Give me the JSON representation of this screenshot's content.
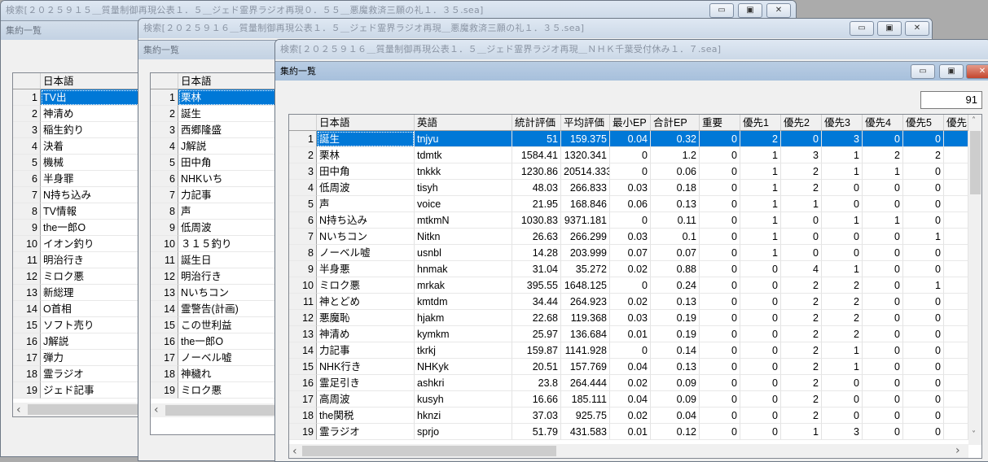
{
  "windows": [
    {
      "title": "検索[２０２５９１５＿質量制御再現公表１．５＿ジェド霊界ラジオ再現０．５５＿悪魔救済三願の礼１．３５.sea]",
      "inner_title": "集約一覧",
      "grid": {
        "header": [
          "日本語"
        ],
        "rows": [
          "TV出",
          "神清め",
          "稲生釣り",
          "決着",
          "機械",
          "半身罪",
          "N持ち込み",
          "TV情報",
          "the一郎O",
          "イオン釣り",
          "明治行き",
          "ミロク悪",
          "新総理",
          "O首相",
          "ソフト売り",
          "J解説",
          "弾力",
          "霊ラジオ",
          "ジェド記事"
        ]
      }
    },
    {
      "title": "検索[２０２５９１６＿質量制御再現公表１．５＿ジェド霊界ラジオ再現＿悪魔救済三願の礼１．３５.sea]",
      "inner_title": "集約一覧",
      "grid": {
        "header": [
          "日本語"
        ],
        "rows": [
          "栗林",
          "誕生",
          "西郷隆盛",
          "J解説",
          "田中角",
          "NHKいち",
          "力記事",
          "声",
          "低周波",
          "３１５釣り",
          "誕生日",
          "明治行き",
          "Nいちコン",
          "霊警告(計画)",
          "この世利益",
          "the一郎O",
          "ノーベル嘘",
          "神穢れ",
          "ミロク悪"
        ]
      }
    },
    {
      "title": "検索[２０２５９１６＿質量制御再現公表１．５＿ジェド霊界ラジオ再現＿ＮＨＫ千葉受付休み１．７.sea]",
      "inner_title": "集約一覧",
      "count": "91",
      "grid": {
        "header": [
          "日本語",
          "英語",
          "統計評価",
          "平均評価",
          "最小EP",
          "合計EP",
          "重要",
          "優先1",
          "優先2",
          "優先3",
          "優先4",
          "優先5",
          "優先"
        ],
        "rows": [
          [
            "誕生",
            "tnjyu",
            "51",
            "159.375",
            "0.04",
            "0.32",
            "0",
            "2",
            "0",
            "3",
            "0",
            "0"
          ],
          [
            "栗林",
            "tdmtk",
            "1584.41",
            "1320.341",
            "0",
            "1.2",
            "0",
            "1",
            "3",
            "1",
            "2",
            "2"
          ],
          [
            "田中角",
            "tnkkk",
            "1230.86",
            "20514.333",
            "0",
            "0.06",
            "0",
            "1",
            "2",
            "1",
            "1",
            "0"
          ],
          [
            "低周波",
            "tisyh",
            "48.03",
            "266.833",
            "0.03",
            "0.18",
            "0",
            "1",
            "2",
            "0",
            "0",
            "0"
          ],
          [
            "声",
            "voice",
            "21.95",
            "168.846",
            "0.06",
            "0.13",
            "0",
            "1",
            "1",
            "0",
            "0",
            "0"
          ],
          [
            "N持ち込み",
            "mtkmN",
            "1030.83",
            "9371.181",
            "0",
            "0.11",
            "0",
            "1",
            "0",
            "1",
            "1",
            "0"
          ],
          [
            "Nいちコン",
            "Nitkn",
            "26.63",
            "266.299",
            "0.03",
            "0.1",
            "0",
            "1",
            "0",
            "0",
            "0",
            "1"
          ],
          [
            "ノーベル嘘",
            "usnbl",
            "14.28",
            "203.999",
            "0.07",
            "0.07",
            "0",
            "1",
            "0",
            "0",
            "0",
            "0"
          ],
          [
            "半身悪",
            "hnmak",
            "31.04",
            "35.272",
            "0.02",
            "0.88",
            "0",
            "0",
            "4",
            "1",
            "0",
            "0"
          ],
          [
            "ミロク悪",
            "mrkak",
            "395.55",
            "1648.125",
            "0",
            "0.24",
            "0",
            "0",
            "2",
            "2",
            "0",
            "1"
          ],
          [
            "神とどめ",
            "kmtdm",
            "34.44",
            "264.923",
            "0.02",
            "0.13",
            "0",
            "0",
            "2",
            "2",
            "0",
            "0"
          ],
          [
            "悪魔恥",
            "hjakm",
            "22.68",
            "119.368",
            "0.03",
            "0.19",
            "0",
            "0",
            "2",
            "2",
            "0",
            "0"
          ],
          [
            "神清め",
            "kymkm",
            "25.97",
            "136.684",
            "0.01",
            "0.19",
            "0",
            "0",
            "2",
            "2",
            "0",
            "0"
          ],
          [
            "力記事",
            "tkrkj",
            "159.87",
            "1141.928",
            "0",
            "0.14",
            "0",
            "0",
            "2",
            "1",
            "0",
            "0"
          ],
          [
            "NHK行き",
            "NHKyk",
            "20.51",
            "157.769",
            "0.04",
            "0.13",
            "0",
            "0",
            "2",
            "1",
            "0",
            "0"
          ],
          [
            "霊足引き",
            "ashkri",
            "23.8",
            "264.444",
            "0.02",
            "0.09",
            "0",
            "0",
            "2",
            "0",
            "0",
            "0"
          ],
          [
            "高周波",
            "kusyh",
            "16.66",
            "185.111",
            "0.04",
            "0.09",
            "0",
            "0",
            "2",
            "0",
            "0",
            "0"
          ],
          [
            "the関税",
            "hknzi",
            "37.03",
            "925.75",
            "0.02",
            "0.04",
            "0",
            "0",
            "2",
            "0",
            "0",
            "0"
          ],
          [
            "霊ラジオ",
            "sprjo",
            "51.79",
            "431.583",
            "0.01",
            "0.12",
            "0",
            "0",
            "1",
            "3",
            "0",
            "0"
          ]
        ]
      }
    }
  ],
  "controls": {
    "minimize": "▭",
    "maximize": "▣",
    "close": "✕"
  },
  "colors": {
    "selection": "#0078d7",
    "close_button": "#c4462e"
  }
}
